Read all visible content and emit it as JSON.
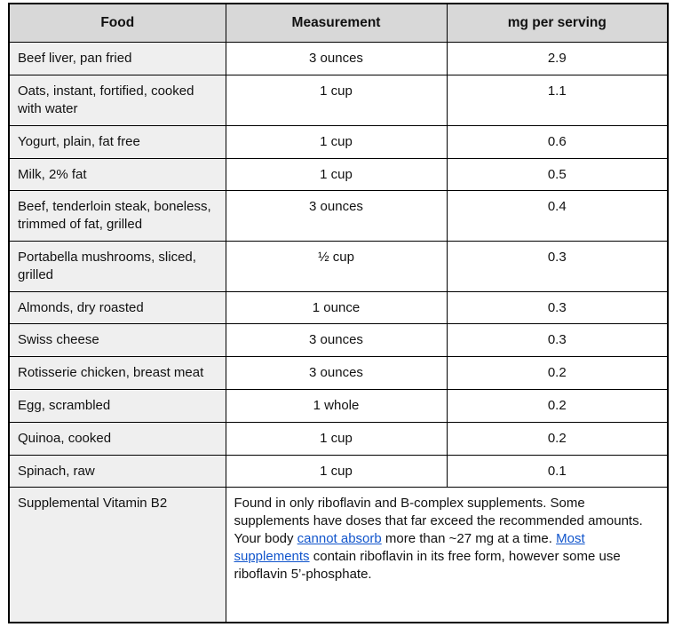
{
  "table": {
    "headers": [
      {
        "label": "Food"
      },
      {
        "label": "Measurement"
      },
      {
        "label": "mg per serving"
      }
    ],
    "rows": [
      {
        "food": "Beef liver, pan fried",
        "measurement": "3 ounces",
        "mg_per_serving": "2.9"
      },
      {
        "food": "Oats, instant, fortified, cooked with water",
        "measurement": "1 cup",
        "mg_per_serving": "1.1"
      },
      {
        "food": "Yogurt, plain, fat free",
        "measurement": "1 cup",
        "mg_per_serving": "0.6"
      },
      {
        "food": "Milk, 2% fat",
        "measurement": "1 cup",
        "mg_per_serving": "0.5"
      },
      {
        "food": "Beef, tenderloin steak, boneless, trimmed of fat, grilled",
        "measurement": "3 ounces",
        "mg_per_serving": "0.4"
      },
      {
        "food": "Portabella mushrooms, sliced, grilled",
        "measurement": "½ cup",
        "mg_per_serving": "0.3"
      },
      {
        "food": "Almonds, dry roasted",
        "measurement": "1 ounce",
        "mg_per_serving": "0.3"
      },
      {
        "food": "Swiss cheese",
        "measurement": "3 ounces",
        "mg_per_serving": "0.3"
      },
      {
        "food": "Rotisserie chicken, breast meat",
        "measurement": "3 ounces",
        "mg_per_serving": "0.2"
      },
      {
        "food": "Egg, scrambled",
        "measurement": "1 whole",
        "mg_per_serving": "0.2"
      },
      {
        "food": "Quinoa, cooked",
        "measurement": "1 cup",
        "mg_per_serving": "0.2"
      },
      {
        "food": "Spinach, raw",
        "measurement": "1 cup",
        "mg_per_serving": "0.1"
      }
    ],
    "supplement_row": {
      "label": "Supplemental Vitamin B2",
      "note_segments": [
        {
          "text": "Found in only riboflavin and B-complex supplements. Some supplements have doses that far exceed the recommended amounts. Your body ",
          "link": false
        },
        {
          "text": "cannot absorb",
          "link": true
        },
        {
          "text": " more than ~27 mg at a time. ",
          "link": false
        },
        {
          "text": "Most supplements",
          "link": true
        },
        {
          "text": " contain riboflavin in its free form, however some use riboflavin 5’-phosphate.",
          "link": false
        }
      ]
    }
  },
  "colors": {
    "header_background": "#d8d8d8",
    "food_column_background": "#efefef",
    "border": "#000000",
    "link": "#1155cc",
    "text": "#111111"
  }
}
